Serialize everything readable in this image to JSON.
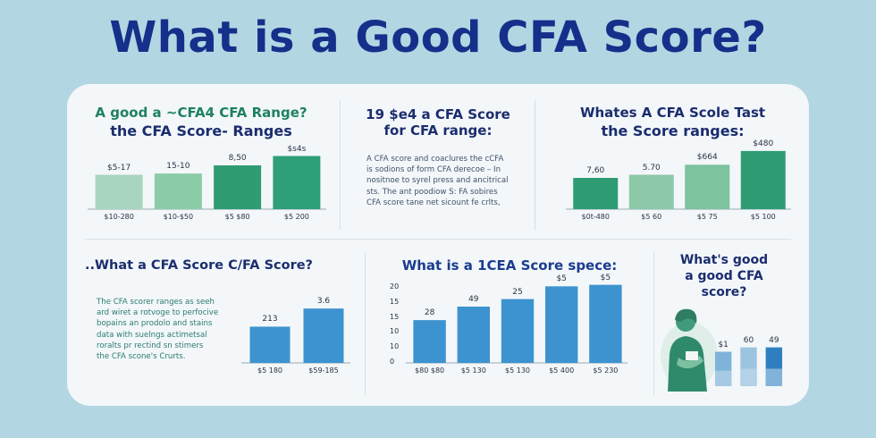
{
  "title": "What is a Good CFA   Score?",
  "panels": {
    "top_left": {
      "title_line1": "A good a ~CFA4 CFA Range?",
      "title_line2": "the CFA Score- Ranges",
      "chart_data": {
        "type": "bar",
        "categories": [
          "$10-280",
          "$10-$50",
          "$5 $80",
          "$5 200"
        ],
        "value_labels": [
          "$5-17",
          "15-10",
          "8,50",
          "$s4s"
        ],
        "values": [
          0.55,
          0.57,
          0.7,
          0.85
        ],
        "colors": [
          "#a8d5bf",
          "#8ccba8",
          "#2f9c72",
          "#2e9f79"
        ]
      }
    },
    "top_middle": {
      "title_line1": "19 $e4 a CFA Score",
      "title_line2": "for CFA range:",
      "paragraph": [
        "A CFA score and coaclures the cCFA",
        "is sodions of form CFA derecoe – In",
        "nositnoe to syrel press and ancitrical",
        "sts. The ant poodiow S: FA sobires",
        "CFA score tane net sicount fe crlts,"
      ]
    },
    "top_right": {
      "title_line1": "Whates A CFA Scole Tast",
      "title_line2": "the Score ranges:",
      "chart_data": {
        "type": "bar",
        "categories": [
          "$0t-480",
          "$5 60",
          "$5 75",
          "$5 100"
        ],
        "value_labels": [
          "7,60",
          "5.70",
          "$664",
          "$480"
        ],
        "values": [
          0.5,
          0.55,
          0.71,
          0.93
        ],
        "colors": [
          "#2f9c74",
          "#8cc9a8",
          "#7cc39e",
          "#2f9c74"
        ]
      }
    },
    "bottom_left": {
      "title": "..What a CFA Score C/FA Score?",
      "paragraph": [
        "The CFA scorer ranges as seeh",
        "ard wiret a rotvoge to perfocive",
        "bopains an prodolo and stains",
        "data with suelngs actimetsal",
        "roralts pr rectind sn stimers",
        "the CFA scone's Crurts."
      ],
      "chart_data": {
        "type": "bar",
        "categories": [
          "$5 180",
          "$59-185"
        ],
        "value_labels": [
          "213",
          "3.6"
        ],
        "values": [
          0.52,
          0.78
        ],
        "colors": [
          "#3d93cf",
          "#3d93cf"
        ]
      }
    },
    "bottom_middle": {
      "title": "What is a 1CEA Score spece:",
      "chart_data": {
        "type": "bar",
        "categories": [
          "$80 $80",
          "$5 130",
          "$5 130",
          "$5 400",
          "$5 230"
        ],
        "value_labels": [
          "28",
          "49",
          "25",
          "$5",
          "$5"
        ],
        "values": [
          0.57,
          0.75,
          0.85,
          1.02,
          1.04
        ],
        "y_ticks": [
          "20",
          "15",
          "15",
          "10",
          "10",
          "0"
        ],
        "colors": [
          "#3d93cf",
          "#3d93cf",
          "#3d93cf",
          "#3d93cf",
          "#3d93cf"
        ]
      }
    },
    "bottom_right": {
      "title_line1": "What's good",
      "title_line2": "a good CFA",
      "title_line3": "score?",
      "chart_data": {
        "type": "bar",
        "categories": [
          "",
          "",
          ""
        ],
        "value_labels": [
          "$1",
          "60",
          "49"
        ],
        "values": [
          0.55,
          0.62,
          0.62
        ],
        "colors": [
          "#7fb4d9",
          "#9cc3df",
          "#2f7fc0"
        ]
      }
    }
  }
}
